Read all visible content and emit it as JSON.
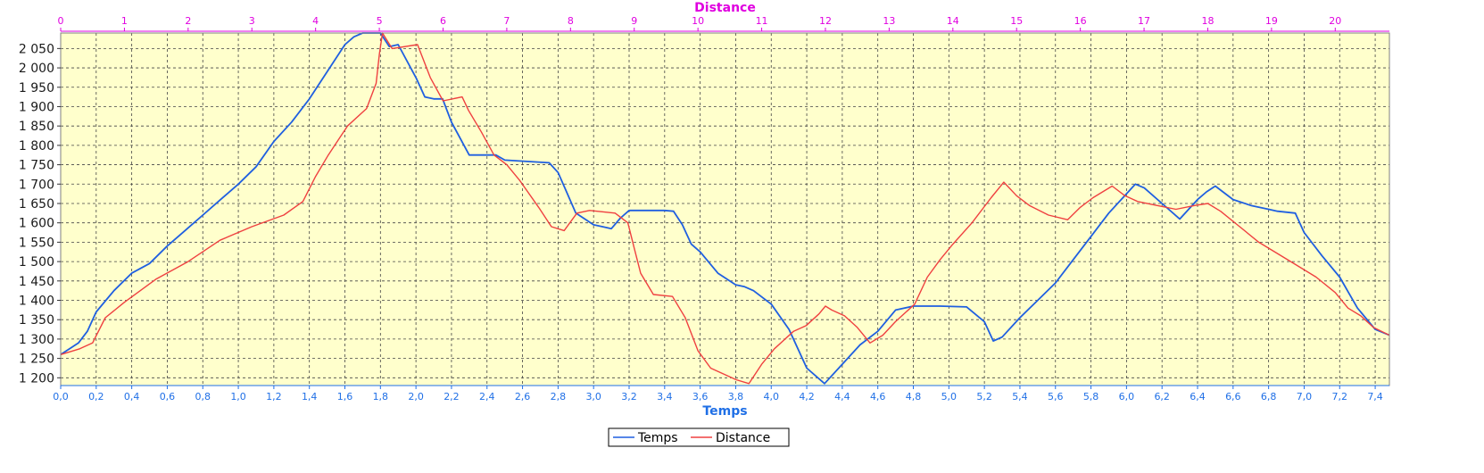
{
  "chart_data": {
    "type": "line",
    "xlabel": "Temps",
    "x2label": "Distance",
    "ylabel": "",
    "ylim": [
      1180,
      2090
    ],
    "xlim": [
      0,
      7.48
    ],
    "x2lim": [
      0,
      20.85
    ],
    "yticks": [
      1200,
      1250,
      1300,
      1350,
      1400,
      1450,
      1500,
      1550,
      1600,
      1650,
      1700,
      1750,
      1800,
      1850,
      1900,
      1950,
      2000,
      2050
    ],
    "ytick_labels": [
      "1 200",
      "1 250",
      "1 300",
      "1 350",
      "1 400",
      "1 450",
      "1 500",
      "1 550",
      "1 600",
      "1 650",
      "1 700",
      "1 750",
      "1 800",
      "1 850",
      "1 900",
      "1 950",
      "2 000",
      "2 050"
    ],
    "xticks": [
      0,
      0.2,
      0.4,
      0.6,
      0.8,
      1.0,
      1.2,
      1.4,
      1.6,
      1.8,
      2.0,
      2.2,
      2.4,
      2.6,
      2.8,
      3.0,
      3.2,
      3.4,
      3.6,
      3.8,
      4.0,
      4.2,
      4.4,
      4.6,
      4.8,
      5.0,
      5.2,
      5.4,
      5.6,
      5.8,
      6.0,
      6.2,
      6.4,
      6.6,
      6.8,
      7.0,
      7.2,
      7.4
    ],
    "xtick_labels": [
      "0,0",
      "0,2",
      "0,4",
      "0,6",
      "0,8",
      "1,0",
      "1,2",
      "1,4",
      "1,6",
      "1,8",
      "2,0",
      "2,2",
      "2,4",
      "2,6",
      "2,8",
      "3,0",
      "3,2",
      "3,4",
      "3,6",
      "3,8",
      "4,0",
      "4,2",
      "4,4",
      "4,6",
      "4,8",
      "5,0",
      "5,2",
      "5,4",
      "5,6",
      "5,8",
      "6,0",
      "6,2",
      "6,4",
      "6,6",
      "6,8",
      "7,0",
      "7,2",
      "7,4"
    ],
    "x2ticks": [
      0,
      1,
      2,
      3,
      4,
      5,
      6,
      7,
      8,
      9,
      10,
      11,
      12,
      13,
      14,
      15,
      16,
      17,
      18,
      19,
      20
    ],
    "x2tick_labels": [
      "0",
      "1",
      "2",
      "3",
      "4",
      "5",
      "6",
      "7",
      "8",
      "9",
      "10",
      "11",
      "12",
      "13",
      "14",
      "15",
      "16",
      "17",
      "18",
      "19",
      "20"
    ],
    "grid": true,
    "legend": "bottom-center",
    "background": "#ffffcc",
    "series": [
      {
        "name": "Temps",
        "axis": "Temps",
        "color": "#1f5fe0",
        "x": [
          0,
          0.05,
          0.1,
          0.15,
          0.2,
          0.3,
          0.4,
          0.5,
          0.6,
          0.7,
          0.8,
          0.9,
          1.0,
          1.1,
          1.2,
          1.3,
          1.4,
          1.5,
          1.6,
          1.65,
          1.7,
          1.8,
          1.85,
          1.9,
          2.0,
          2.05,
          2.1,
          2.15,
          2.2,
          2.3,
          2.45,
          2.5,
          2.75,
          2.8,
          2.9,
          3.0,
          3.05,
          3.1,
          3.15,
          3.2,
          3.3,
          3.4,
          3.45,
          3.5,
          3.55,
          3.6,
          3.7,
          3.8,
          3.85,
          3.9,
          4.0,
          4.1,
          4.2,
          4.3,
          4.4,
          4.5,
          4.6,
          4.7,
          4.8,
          4.95,
          5.1,
          5.2,
          5.25,
          5.3,
          5.4,
          5.5,
          5.6,
          5.7,
          5.8,
          5.9,
          6.0,
          6.05,
          6.1,
          6.2,
          6.3,
          6.4,
          6.45,
          6.5,
          6.6,
          6.7,
          6.8,
          6.85,
          6.95,
          7.0,
          7.1,
          7.2,
          7.25,
          7.3,
          7.4,
          7.48
        ],
        "y": [
          1260,
          1275,
          1290,
          1320,
          1370,
          1425,
          1470,
          1495,
          1540,
          1580,
          1620,
          1660,
          1700,
          1745,
          1810,
          1860,
          1920,
          1990,
          2060,
          2080,
          2090,
          2090,
          2055,
          2060,
          1975,
          1925,
          1920,
          1920,
          1860,
          1775,
          1775,
          1762,
          1755,
          1730,
          1625,
          1595,
          1590,
          1585,
          1612,
          1632,
          1632,
          1632,
          1630,
          1595,
          1545,
          1525,
          1470,
          1440,
          1435,
          1425,
          1390,
          1325,
          1225,
          1185,
          1235,
          1285,
          1320,
          1375,
          1385,
          1385,
          1383,
          1345,
          1295,
          1305,
          1355,
          1400,
          1445,
          1505,
          1565,
          1625,
          1675,
          1700,
          1690,
          1650,
          1610,
          1660,
          1680,
          1695,
          1660,
          1645,
          1635,
          1630,
          1625,
          1575,
          1515,
          1460,
          1420,
          1380,
          1325,
          1310
        ]
      },
      {
        "name": "Distance",
        "axis": "Distance",
        "color": "#ef4040",
        "x": [
          0,
          0.3,
          0.5,
          0.7,
          1.0,
          1.5,
          2.0,
          2.5,
          3.0,
          3.5,
          3.8,
          4.0,
          4.2,
          4.5,
          4.8,
          4.95,
          5.0,
          5.05,
          5.2,
          5.6,
          5.8,
          6.0,
          6.3,
          6.4,
          6.6,
          6.8,
          7.0,
          7.2,
          7.5,
          7.7,
          7.9,
          8.1,
          8.3,
          8.7,
          8.9,
          9.0,
          9.1,
          9.3,
          9.6,
          9.8,
          10.0,
          10.2,
          10.4,
          10.6,
          10.8,
          11.0,
          11.2,
          11.5,
          11.7,
          11.9,
          12.0,
          12.1,
          12.3,
          12.5,
          12.7,
          12.9,
          13.1,
          13.4,
          13.6,
          13.8,
          14.0,
          14.3,
          14.6,
          14.8,
          15.0,
          15.2,
          15.5,
          15.8,
          16.0,
          16.2,
          16.5,
          16.7,
          16.9,
          17.2,
          17.5,
          17.8,
          18.0,
          18.2,
          18.5,
          18.8,
          19.1,
          19.4,
          19.7,
          20.0,
          20.2,
          20.4,
          20.6,
          20.85
        ],
        "y": [
          1260,
          1275,
          1290,
          1355,
          1395,
          1455,
          1500,
          1555,
          1590,
          1620,
          1655,
          1720,
          1775,
          1850,
          1895,
          1960,
          2035,
          2090,
          2050,
          2060,
          1975,
          1915,
          1925,
          1890,
          1835,
          1775,
          1750,
          1710,
          1640,
          1590,
          1580,
          1625,
          1632,
          1625,
          1600,
          1535,
          1470,
          1415,
          1410,
          1355,
          1270,
          1225,
          1210,
          1195,
          1185,
          1235,
          1275,
          1320,
          1335,
          1365,
          1385,
          1375,
          1360,
          1330,
          1290,
          1310,
          1345,
          1390,
          1460,
          1505,
          1545,
          1600,
          1665,
          1705,
          1670,
          1645,
          1620,
          1608,
          1640,
          1665,
          1695,
          1670,
          1655,
          1645,
          1635,
          1645,
          1650,
          1630,
          1590,
          1550,
          1520,
          1490,
          1460,
          1420,
          1380,
          1360,
          1330,
          1310
        ]
      }
    ]
  }
}
